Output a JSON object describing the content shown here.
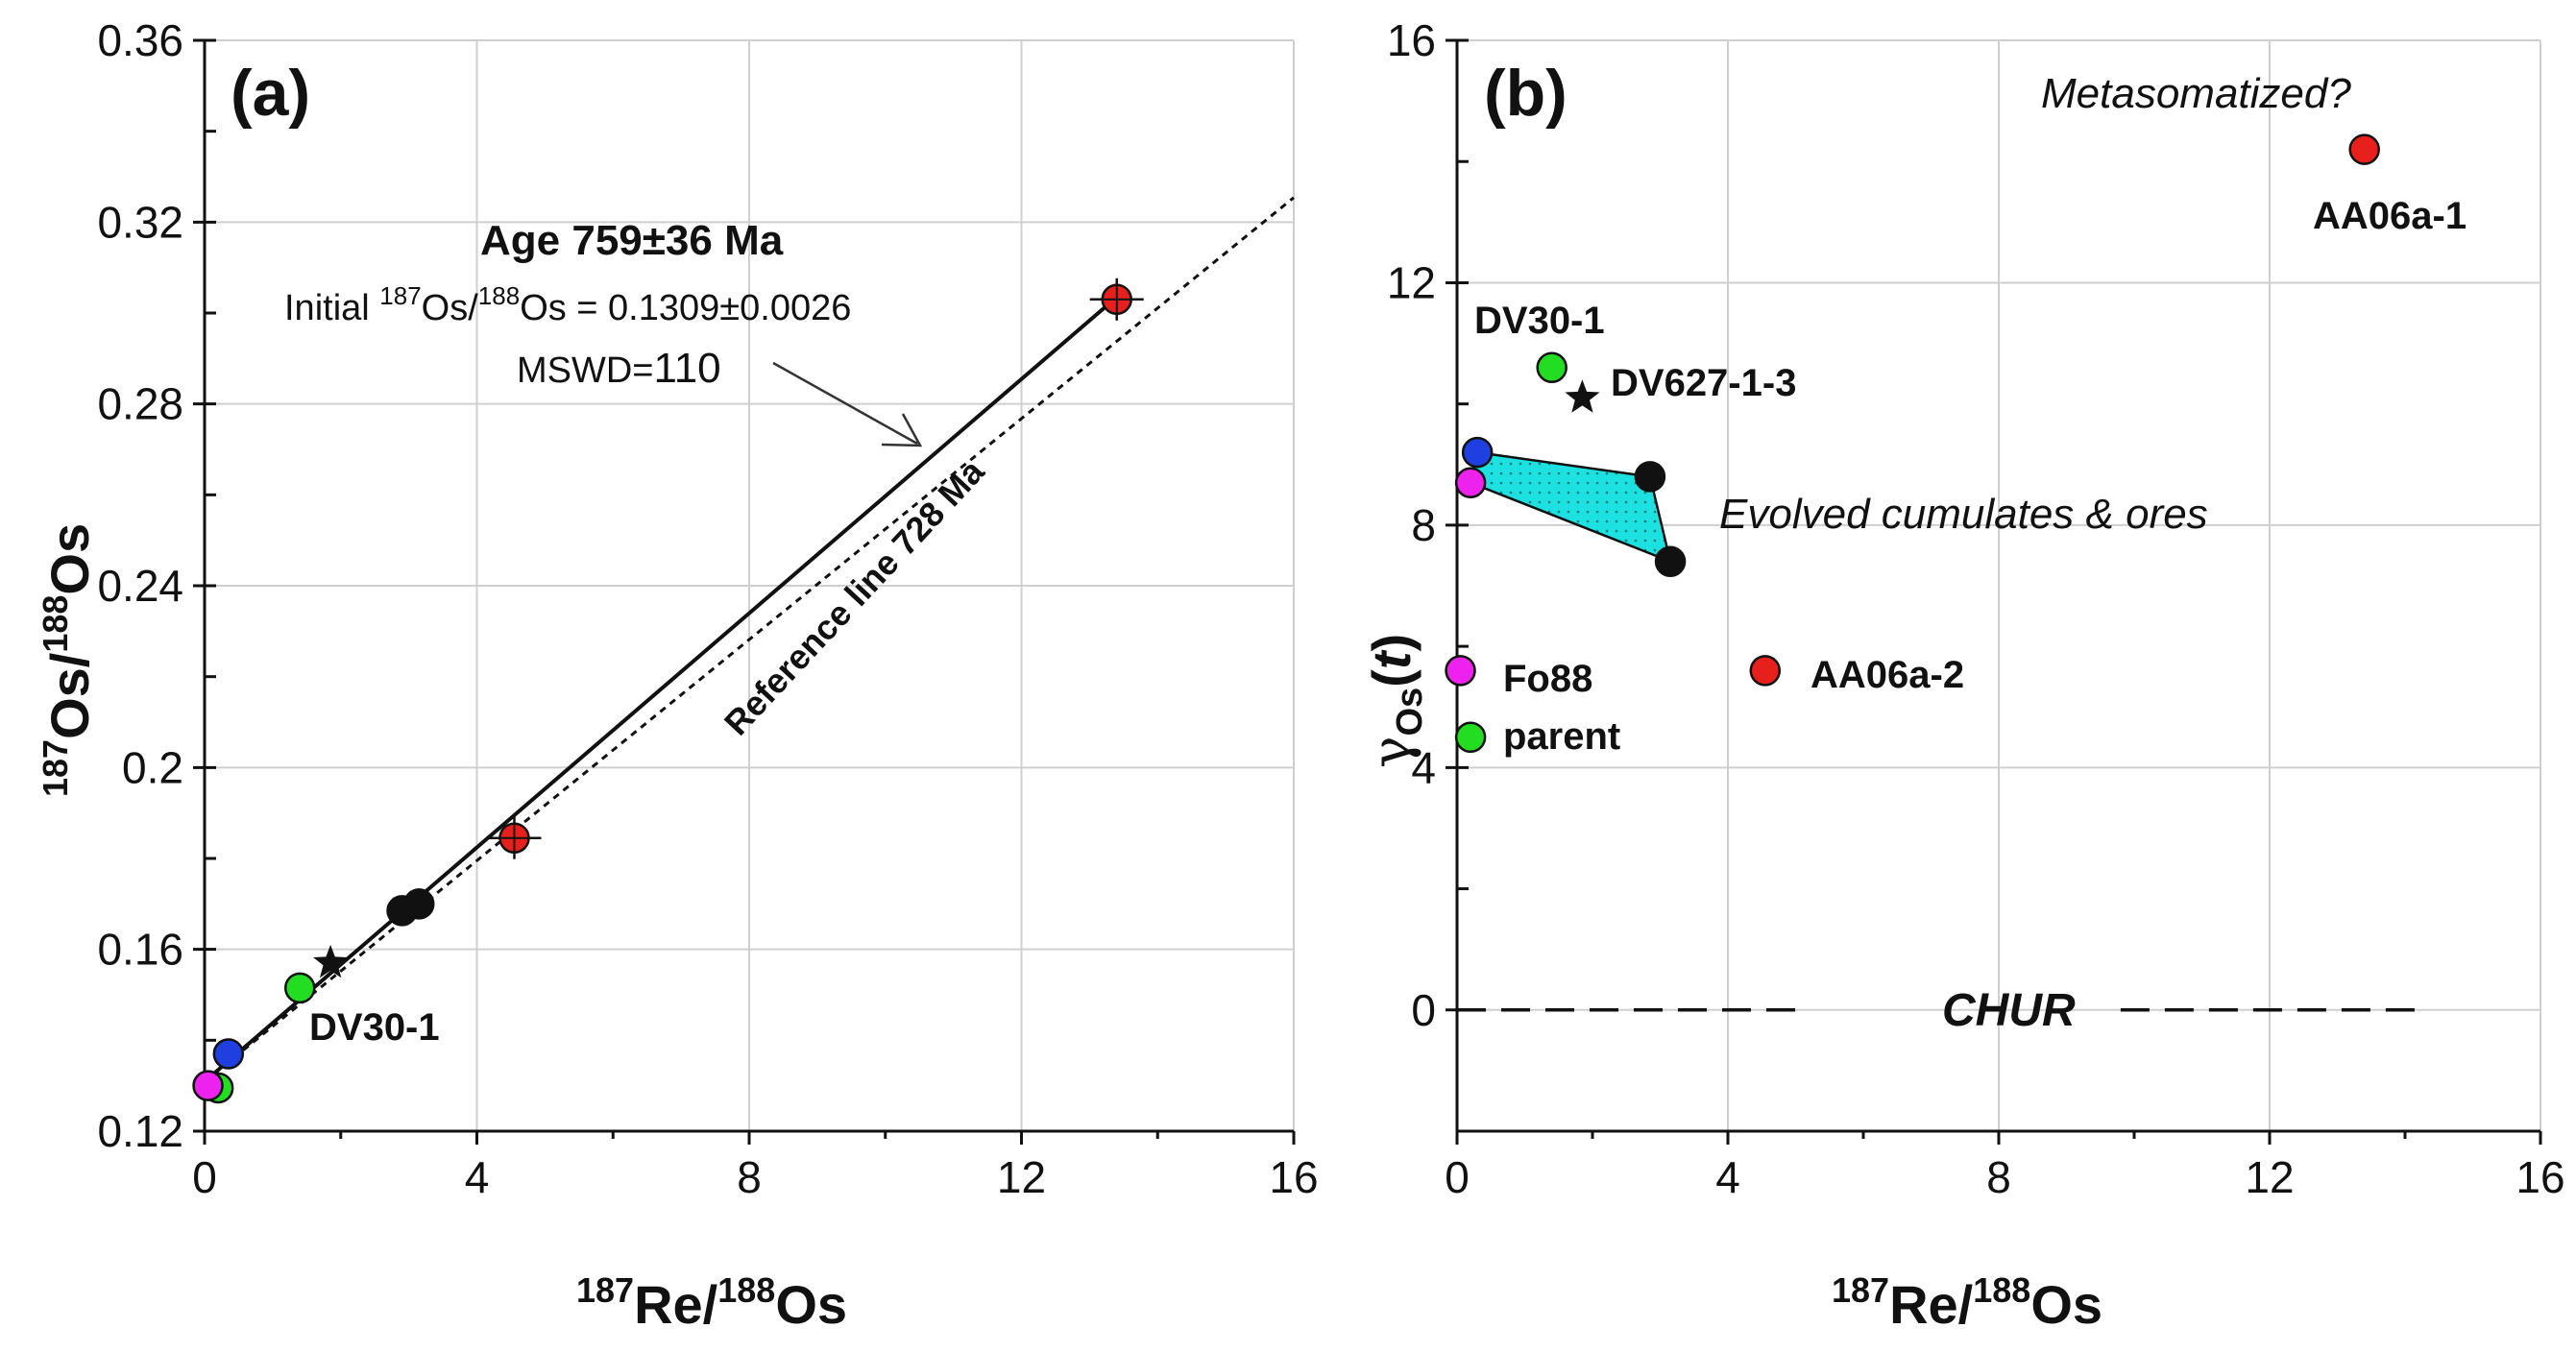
{
  "chart_data": [
    {
      "type": "scatter",
      "panel": "(a)",
      "xlabel": "187Re/188Os",
      "ylabel": "187Os/188Os",
      "xlim": [
        0,
        16
      ],
      "ylim": [
        0.12,
        0.36
      ],
      "xticks": [
        0,
        4,
        8,
        12,
        16
      ],
      "yticks": [
        0.12,
        0.16,
        0.2,
        0.24,
        0.28,
        0.32,
        0.36
      ],
      "ytick_labels": [
        "0.12",
        "0.16",
        "0.2",
        "0.24",
        "0.28",
        "0.32",
        "0.36"
      ],
      "grid": true,
      "annotations": {
        "age": "Age 759±36 Ma",
        "initial_prefix": "Initial ",
        "initial_sup1": "187",
        "initial_mid": "Os/",
        "initial_sup2": "188",
        "initial_suffix": "Os = 0.1309±0.0026",
        "mswd_prefix": "MSWD=",
        "mswd_value": "110",
        "reference": "Reference line 728 Ma"
      },
      "lines": [
        {
          "name": "Isochron 759 Ma",
          "style": "solid",
          "x": [
            0,
            13.4
          ],
          "y": [
            0.1309,
            0.3035
          ]
        },
        {
          "name": "Reference line 728 Ma",
          "style": "dotted",
          "x": [
            0,
            16
          ],
          "y": [
            0.1309,
            0.3254
          ]
        }
      ],
      "series": [
        {
          "name": "red",
          "color": "#e8201c",
          "points": [
            {
              "x": 13.4,
              "y": 0.303,
              "errorbar": true
            },
            {
              "x": 4.55,
              "y": 0.1845,
              "errorbar": true
            }
          ]
        },
        {
          "name": "black",
          "color": "#111111",
          "points": [
            {
              "x": 2.9,
              "y": 0.1685
            },
            {
              "x": 3.15,
              "y": 0.17
            }
          ]
        },
        {
          "name": "star",
          "color": "#111111",
          "marker": "star",
          "points": [
            {
              "x": 1.85,
              "y": 0.157
            }
          ]
        },
        {
          "name": "green",
          "color": "#22dd22",
          "points": [
            {
              "x": 1.4,
              "y": 0.1515,
              "label": "DV30-1"
            },
            {
              "x": 0.2,
              "y": 0.1295
            }
          ]
        },
        {
          "name": "blue",
          "color": "#1f3fe0",
          "points": [
            {
              "x": 0.35,
              "y": 0.137
            }
          ]
        },
        {
          "name": "magenta",
          "color": "#ee22ee",
          "points": [
            {
              "x": 0.05,
              "y": 0.13
            }
          ]
        }
      ]
    },
    {
      "type": "scatter",
      "panel": "(b)",
      "xlabel": "187Re/188Os",
      "ylabel": "γOs(t)",
      "xlim": [
        0,
        16
      ],
      "ylim": [
        -2,
        16
      ],
      "xticks": [
        0,
        4,
        8,
        12,
        16
      ],
      "yticks": [
        0,
        4,
        8,
        12,
        16
      ],
      "grid": true,
      "annotations": {
        "metasomatized": "Metasomatized?",
        "evolved": "Evolved cumulates & ores",
        "chur": "CHUR"
      },
      "chur_line": {
        "y": 0,
        "x": [
          0,
          14.3
        ]
      },
      "polygon_field": {
        "name": "Evolved cumulates & ores",
        "color": "#1de0e0",
        "x": [
          0.3,
          2.85,
          3.15,
          0.2
        ],
        "y": [
          9.2,
          8.8,
          7.4,
          8.7
        ]
      },
      "series": [
        {
          "name": "red",
          "color": "#e8201c",
          "points": [
            {
              "x": 13.4,
              "y": 14.2,
              "label": "AA06a-1"
            },
            {
              "x": 4.55,
              "y": 5.6,
              "label": "AA06a-2"
            }
          ]
        },
        {
          "name": "green",
          "color": "#22dd22",
          "points": [
            {
              "x": 1.4,
              "y": 10.6,
              "label": "DV30-1"
            },
            {
              "x": 0.2,
              "y": 4.5,
              "label": "parent"
            }
          ]
        },
        {
          "name": "star",
          "color": "#111111",
          "marker": "star",
          "points": [
            {
              "x": 1.85,
              "y": 10.1,
              "label": "DV627-1-3"
            }
          ]
        },
        {
          "name": "blue",
          "color": "#1f3fe0",
          "points": [
            {
              "x": 0.3,
              "y": 9.2
            }
          ]
        },
        {
          "name": "magenta",
          "color": "#ee22ee",
          "points": [
            {
              "x": 0.2,
              "y": 8.7
            },
            {
              "x": 0.05,
              "y": 5.6,
              "label": "Fo88"
            }
          ]
        },
        {
          "name": "black",
          "color": "#111111",
          "points": [
            {
              "x": 2.85,
              "y": 8.8
            },
            {
              "x": 3.15,
              "y": 7.4
            }
          ]
        }
      ]
    }
  ],
  "labels": {
    "panel_a": "(a)",
    "panel_b": "(b)",
    "xlabel_sup1": "187",
    "xlabel_re": "Re/",
    "xlabel_sup2": "188",
    "xlabel_os": "Os",
    "ylabel_a_sup1": "187",
    "ylabel_a_os": "Os/",
    "ylabel_a_sup2": "188",
    "ylabel_a_os2": "Os",
    "ylabel_b_gamma": "γ",
    "ylabel_b_sub": "Os",
    "ylabel_b_open": "(",
    "ylabel_b_t": "t",
    "ylabel_b_close": ")"
  }
}
